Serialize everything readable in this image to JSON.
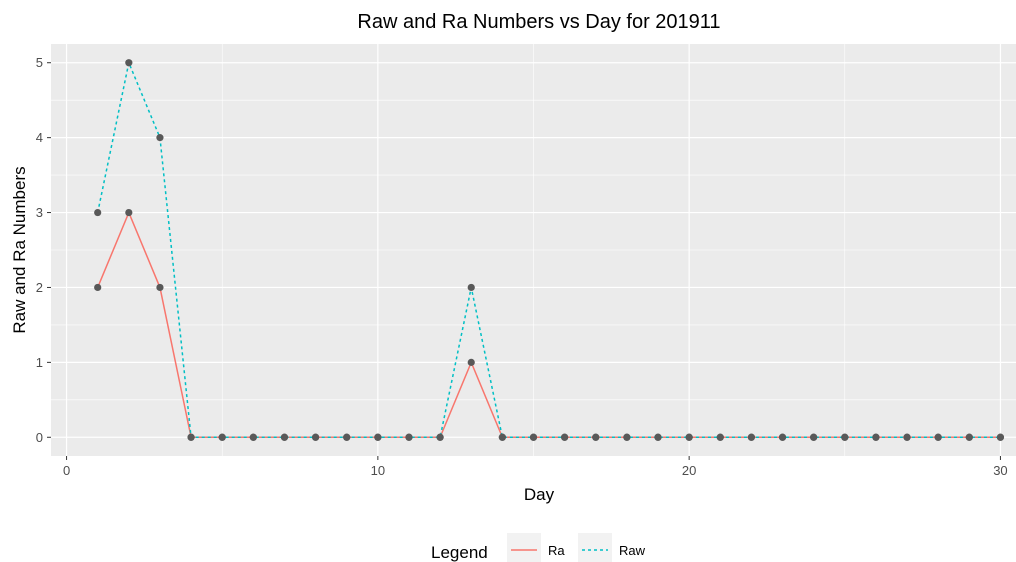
{
  "chart_data": {
    "type": "line",
    "title": "Raw and Ra Numbers vs Day for 201911",
    "xlabel": "Day",
    "ylabel": "Raw and Ra Numbers",
    "xlim": [
      -0.5,
      30.5
    ],
    "ylim": [
      -0.25,
      5.25
    ],
    "x_ticks": [
      0,
      10,
      20,
      30
    ],
    "y_ticks": [
      0,
      1,
      2,
      3,
      4,
      5
    ],
    "grid": true,
    "legend": {
      "title": "Legend",
      "position": "bottom"
    },
    "x": [
      1,
      2,
      3,
      4,
      5,
      6,
      7,
      8,
      9,
      10,
      11,
      12,
      13,
      14,
      15,
      16,
      17,
      18,
      19,
      20,
      21,
      22,
      23,
      24,
      25,
      26,
      27,
      28,
      29,
      30
    ],
    "series": [
      {
        "name": "Ra",
        "color": "#F8766D",
        "linestyle": "solid",
        "values": [
          2,
          3,
          2,
          0,
          0,
          0,
          0,
          0,
          0,
          0,
          0,
          0,
          1,
          0,
          0,
          0,
          0,
          0,
          0,
          0,
          0,
          0,
          0,
          0,
          0,
          0,
          0,
          0,
          0,
          0
        ]
      },
      {
        "name": "Raw",
        "color": "#00BFC4",
        "linestyle": "dotted",
        "values": [
          3,
          5,
          4,
          0,
          0,
          0,
          0,
          0,
          0,
          0,
          0,
          0,
          2,
          0,
          0,
          0,
          0,
          0,
          0,
          0,
          0,
          0,
          0,
          0,
          0,
          0,
          0,
          0,
          0,
          0
        ]
      }
    ],
    "point_color": "#595959",
    "panel_color": "#EBEBEB"
  }
}
